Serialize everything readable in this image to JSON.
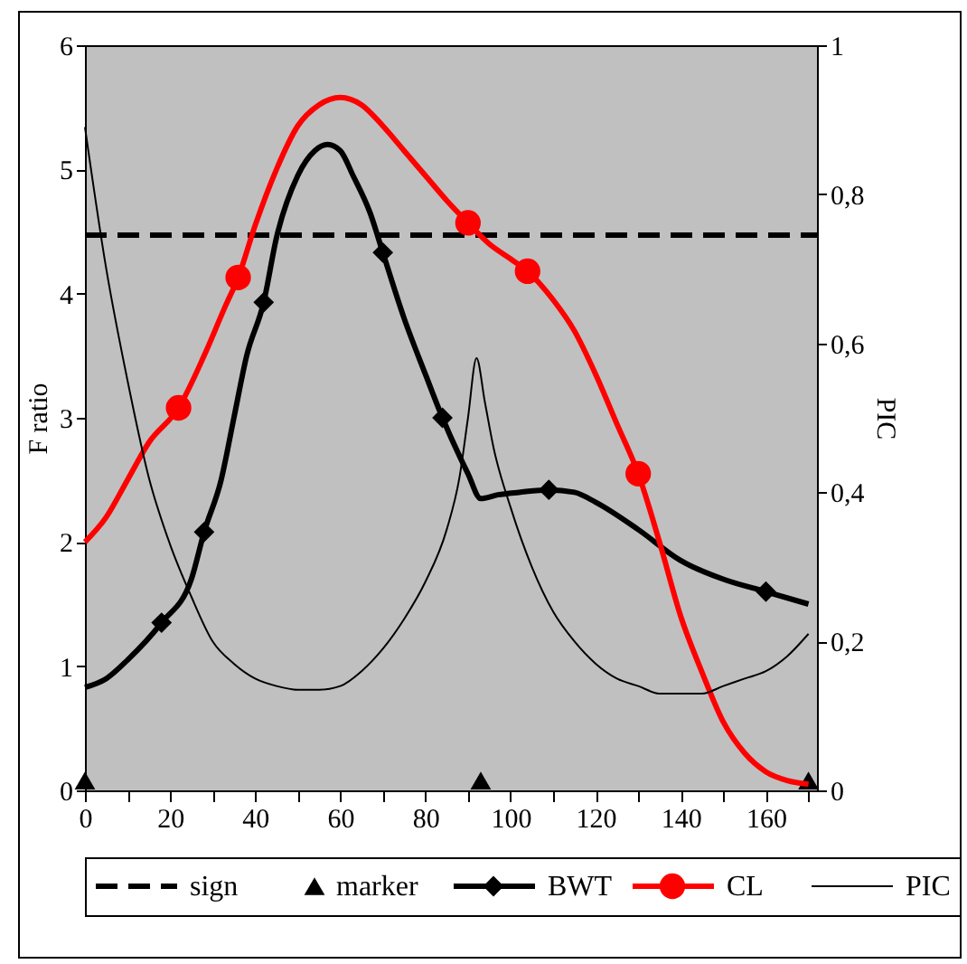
{
  "chart_data": {
    "type": "line",
    "xlabel": null,
    "ylabel": "F ratio",
    "y2label": "PIC",
    "xlim": [
      0,
      172
    ],
    "xticks": [
      0,
      {
        "value": 10,
        "label": null
      },
      20,
      {
        "value": 30,
        "label": null
      },
      40,
      {
        "value": 50,
        "label": null
      },
      60,
      {
        "value": 70,
        "label": null
      },
      80,
      {
        "value": 90,
        "label": null
      },
      100,
      {
        "value": 110,
        "label": null
      },
      120,
      {
        "value": 130,
        "label": null
      },
      140,
      {
        "value": 150,
        "label": null
      },
      160,
      {
        "value": 170,
        "label": null
      }
    ],
    "ylim": [
      0,
      6
    ],
    "yticks": [
      0,
      1,
      2,
      3,
      4,
      5,
      6
    ],
    "y2lim": [
      0,
      1
    ],
    "y2ticks": [
      0,
      {
        "value": 0.2,
        "label": "0,2"
      },
      {
        "value": 0.4,
        "label": "0,4"
      },
      {
        "value": 0.6,
        "label": "0,6"
      },
      {
        "value": 0.8,
        "label": "0,8"
      },
      1
    ],
    "legend": "bottom",
    "series": [
      {
        "name": "sign",
        "type": "line",
        "line_style": "dashed",
        "color": "#000000",
        "x": [
          0,
          172
        ],
        "values": [
          4.47,
          4.47
        ]
      },
      {
        "name": "marker",
        "type": "scatter",
        "marker": "triangle",
        "color": "#000000",
        "x": [
          0,
          93,
          170
        ],
        "values": [
          0.08,
          0.08,
          0.08
        ]
      },
      {
        "name": "BWT",
        "type": "line",
        "color": "#000000",
        "x": [
          0,
          5,
          10,
          18,
          25,
          28,
          32,
          35,
          38,
          42,
          45,
          50,
          54,
          57,
          60,
          63,
          67,
          70,
          75,
          80,
          84,
          90,
          93,
          97,
          102,
          109,
          115,
          120,
          130,
          140,
          150,
          160,
          170
        ],
        "values": [
          0.83,
          0.9,
          1.05,
          1.35,
          1.7,
          2.08,
          2.5,
          3.0,
          3.5,
          3.93,
          4.45,
          4.95,
          5.15,
          5.2,
          5.15,
          4.95,
          4.65,
          4.33,
          3.8,
          3.35,
          3.0,
          2.55,
          2.35,
          2.38,
          2.4,
          2.42,
          2.4,
          2.32,
          2.1,
          1.85,
          1.7,
          1.6,
          1.5
        ]
      },
      {
        "type": "scatter",
        "marker": "diamond",
        "color": "#000000",
        "x": [
          18,
          28,
          42,
          70,
          84,
          109,
          160
        ],
        "values": [
          1.35,
          2.08,
          3.93,
          4.33,
          3.0,
          2.42,
          1.6
        ]
      },
      {
        "name": "CL",
        "type": "line",
        "color": "#ff0000",
        "x": [
          0,
          5,
          10,
          15,
          22,
          28,
          33,
          36,
          40,
          45,
          50,
          55,
          60,
          65,
          70,
          75,
          80,
          85,
          90,
          95,
          100,
          104,
          110,
          115,
          120,
          125,
          130,
          135,
          140,
          145,
          150,
          155,
          160,
          165,
          170
        ],
        "values": [
          2.0,
          2.2,
          2.5,
          2.8,
          3.08,
          3.5,
          3.9,
          4.13,
          4.55,
          5.0,
          5.35,
          5.52,
          5.58,
          5.52,
          5.35,
          5.15,
          4.95,
          4.75,
          4.57,
          4.4,
          4.28,
          4.18,
          3.95,
          3.7,
          3.35,
          2.95,
          2.55,
          2.0,
          1.4,
          0.95,
          0.55,
          0.3,
          0.15,
          0.08,
          0.05
        ]
      },
      {
        "type": "scatter",
        "marker": "circle",
        "color": "#ff0000",
        "x": [
          22,
          36,
          90,
          104,
          130
        ],
        "values": [
          3.08,
          4.13,
          4.57,
          4.18,
          2.55
        ]
      },
      {
        "name": "PIC",
        "type": "line",
        "axis": "y2",
        "color": "#000000",
        "x": [
          0,
          5,
          10,
          15,
          20,
          25,
          30,
          35,
          40,
          45,
          50,
          55,
          60,
          65,
          70,
          75,
          80,
          85,
          88,
          90,
          92,
          94,
          96,
          100,
          105,
          110,
          115,
          120,
          125,
          130,
          135,
          140,
          145,
          150,
          155,
          160,
          165,
          170
        ],
        "values": [
          0.89,
          0.7,
          0.55,
          0.42,
          0.33,
          0.26,
          0.2,
          0.17,
          0.15,
          0.14,
          0.135,
          0.135,
          0.14,
          0.16,
          0.19,
          0.23,
          0.28,
          0.35,
          0.42,
          0.5,
          0.58,
          0.52,
          0.46,
          0.38,
          0.3,
          0.24,
          0.2,
          0.17,
          0.15,
          0.14,
          0.13,
          0.13,
          0.13,
          0.14,
          0.15,
          0.16,
          0.18,
          0.21
        ]
      }
    ]
  }
}
